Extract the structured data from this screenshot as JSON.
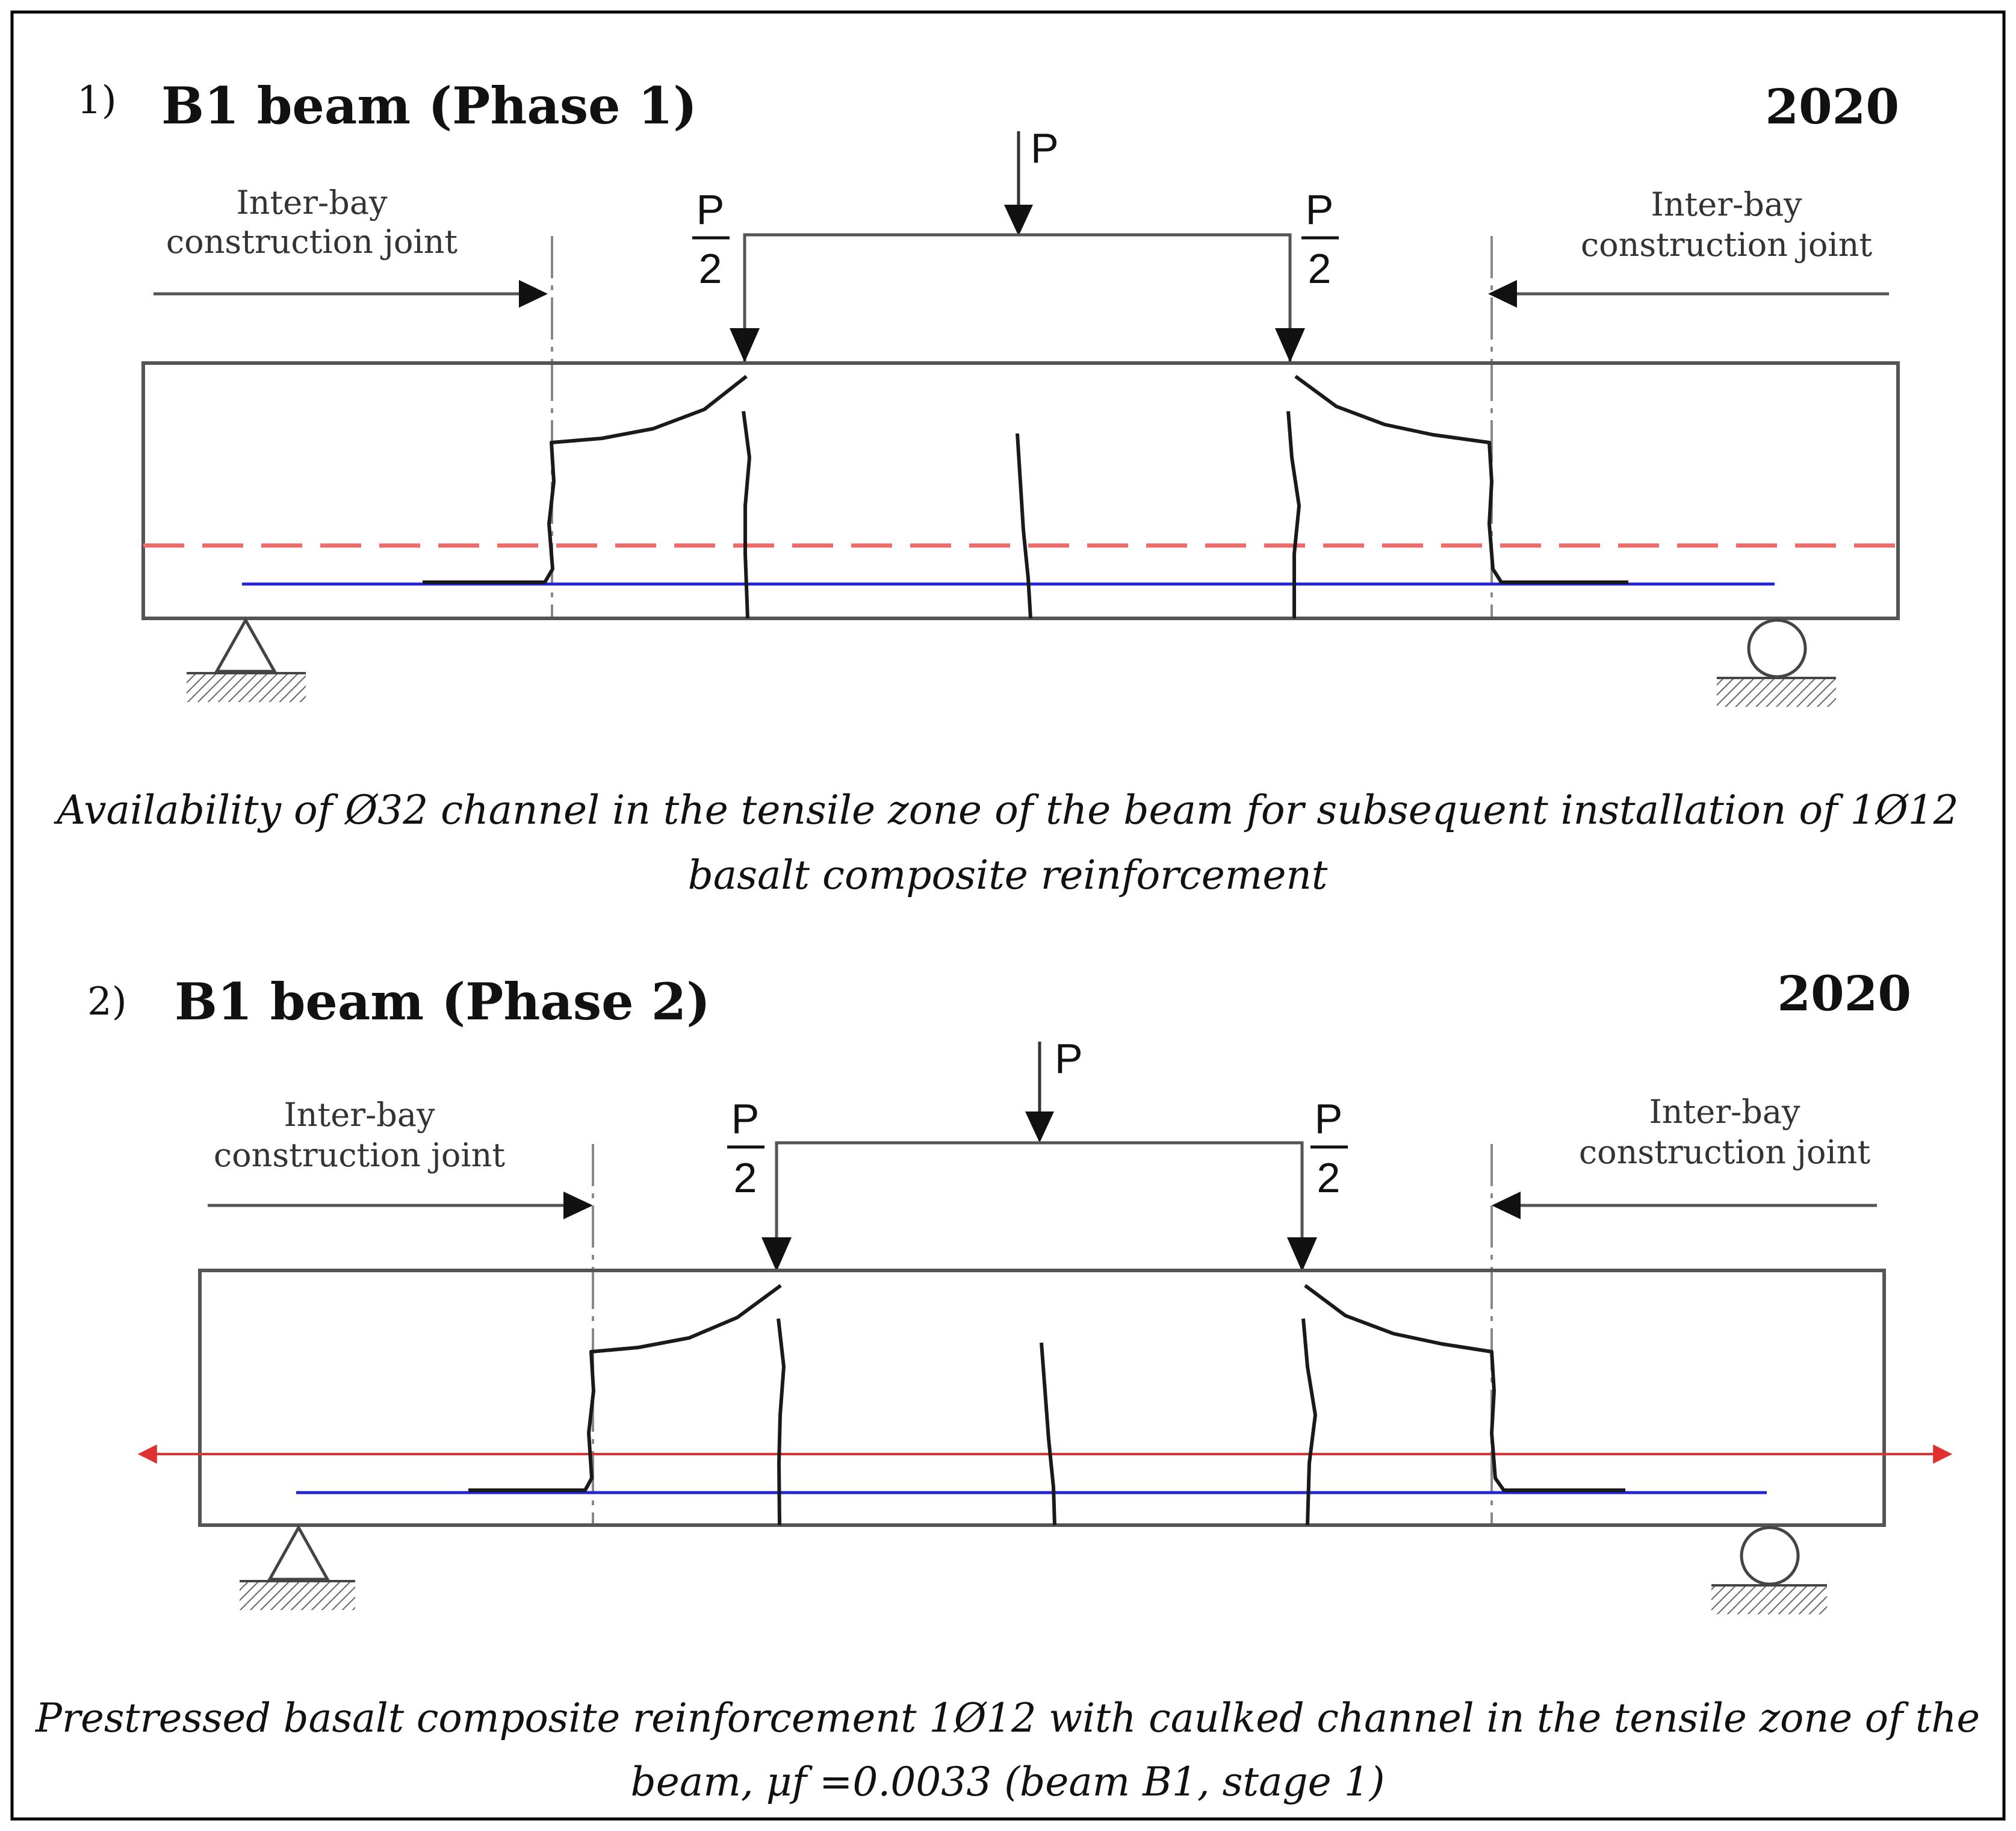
{
  "colors": {
    "channel": "#ee6b6b",
    "prestress": "#e03030",
    "reinforcement": "#2323d6",
    "lines": "#555555",
    "cracks": "#1a1a1a",
    "frame": "#000000"
  },
  "panel1": {
    "number": "1)",
    "title": "B1 beam (Phase 1)",
    "year": "2020",
    "joint_left": [
      "Inter-bay",
      "construction joint"
    ],
    "joint_right": [
      "Inter-bay",
      "construction joint"
    ],
    "load": {
      "total": "P",
      "half_numerator": "P",
      "half_denominator": "2"
    },
    "caption": [
      "Availability of Ø32 channel in the tensile zone of the beam for subsequent installation of 1Ø12",
      "basalt composite reinforcement"
    ]
  },
  "panel2": {
    "number": "2)",
    "title": "B1  beam  (Phase  2)",
    "year": "2020",
    "joint_left": [
      "Inter-bay",
      "construction joint"
    ],
    "joint_right": [
      "Inter-bay",
      "construction joint"
    ],
    "load": {
      "total": "P",
      "half_numerator": "P",
      "half_denominator": "2"
    },
    "caption": [
      "Prestressed basalt composite reinforcement 1Ø12 with caulked channel in the tensile zone of the",
      "beam, μf =0.0033 (beam B1, stage 1)"
    ]
  }
}
